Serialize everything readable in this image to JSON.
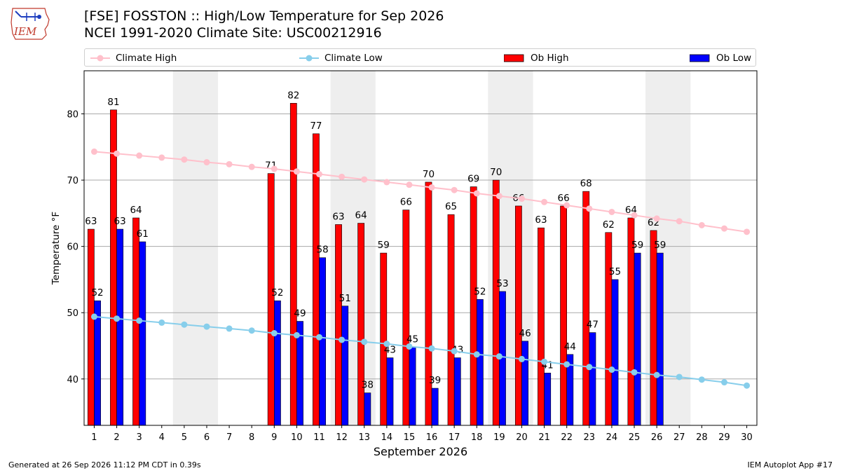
{
  "header": {
    "title": "[FSE] FOSSTON :: High/Low Temperature for Sep 2026",
    "subtitle": "NCEI 1991-2020 Climate Site: USC00212916",
    "logo_text": "IEM"
  },
  "footer": {
    "generated": "Generated at 26 Sep 2026 11:12 PM CDT in 0.39s",
    "app": "IEM Autoplot App #17"
  },
  "colors": {
    "climate_high": "#ffc0cb",
    "climate_low": "#87ceeb",
    "ob_high": "#ff0000",
    "ob_low": "#0000ff",
    "weekend_band": "#eeeeee",
    "grid": "#aaaaaa"
  },
  "chart_data": {
    "type": "bar",
    "title": "[FSE] FOSSTON :: High/Low Temperature for Sep 2026",
    "xlabel": "September 2026",
    "ylabel": "Temperature °F",
    "ylim": [
      33,
      86.5
    ],
    "yticks": [
      40,
      50,
      60,
      70,
      80
    ],
    "x": [
      1,
      2,
      3,
      4,
      5,
      6,
      7,
      8,
      9,
      10,
      11,
      12,
      13,
      14,
      15,
      16,
      17,
      18,
      19,
      20,
      21,
      22,
      23,
      24,
      25,
      26,
      27,
      28,
      29,
      30
    ],
    "shaded_days": [
      [
        5,
        6
      ],
      [
        12,
        13
      ],
      [
        19,
        20
      ],
      [
        26,
        27
      ]
    ],
    "grid": true,
    "legend_position": "top",
    "series": [
      {
        "name": "Climate High",
        "kind": "line",
        "values": [
          74.3,
          74.0,
          73.7,
          73.4,
          73.1,
          72.7,
          72.4,
          72.0,
          71.7,
          71.3,
          70.9,
          70.5,
          70.1,
          69.7,
          69.3,
          68.9,
          68.5,
          68.0,
          67.6,
          67.2,
          66.7,
          66.2,
          65.7,
          65.2,
          64.7,
          64.2,
          63.8,
          63.2,
          62.7,
          62.2
        ]
      },
      {
        "name": "Climate Low",
        "kind": "line",
        "values": [
          49.4,
          49.1,
          48.8,
          48.5,
          48.2,
          47.9,
          47.6,
          47.3,
          46.9,
          46.6,
          46.3,
          45.9,
          45.6,
          45.3,
          44.9,
          44.6,
          44.2,
          43.7,
          43.4,
          43.0,
          42.6,
          42.2,
          41.8,
          41.4,
          41.0,
          40.6,
          40.3,
          39.9,
          39.5,
          39.0
        ]
      },
      {
        "name": "Ob High",
        "kind": "bar",
        "values": [
          62.6,
          80.6,
          64.3,
          null,
          null,
          null,
          null,
          null,
          71.0,
          81.6,
          77.0,
          63.3,
          63.5,
          59.0,
          65.5,
          69.7,
          64.8,
          69.0,
          70.0,
          66.1,
          62.8,
          66.1,
          68.3,
          62.1,
          64.3,
          62.4,
          null,
          null,
          null,
          null
        ],
        "labels": [
          "63",
          "81",
          "64",
          null,
          null,
          null,
          null,
          null,
          "71",
          "82",
          "77",
          "63",
          "64",
          "59",
          "66",
          "70",
          "65",
          "69",
          "70",
          "66",
          "63",
          "66",
          "68",
          "62",
          "64",
          "62",
          null,
          null,
          null,
          null
        ]
      },
      {
        "name": "Ob Low",
        "kind": "bar",
        "values": [
          51.8,
          62.6,
          60.7,
          null,
          null,
          null,
          null,
          null,
          51.8,
          48.7,
          58.3,
          51.0,
          37.9,
          43.2,
          44.8,
          38.6,
          43.2,
          52.0,
          53.2,
          45.7,
          40.9,
          43.7,
          47.0,
          55.0,
          59.0,
          59.0,
          null,
          null,
          null,
          null
        ],
        "labels": [
          "52",
          "63",
          "61",
          null,
          null,
          null,
          null,
          null,
          "52",
          "49",
          "58",
          "51",
          "38",
          "43",
          "45",
          "39",
          "43",
          "52",
          "53",
          "46",
          "41",
          "44",
          "47",
          "55",
          "59",
          "59",
          null,
          null,
          null,
          null
        ]
      }
    ]
  }
}
